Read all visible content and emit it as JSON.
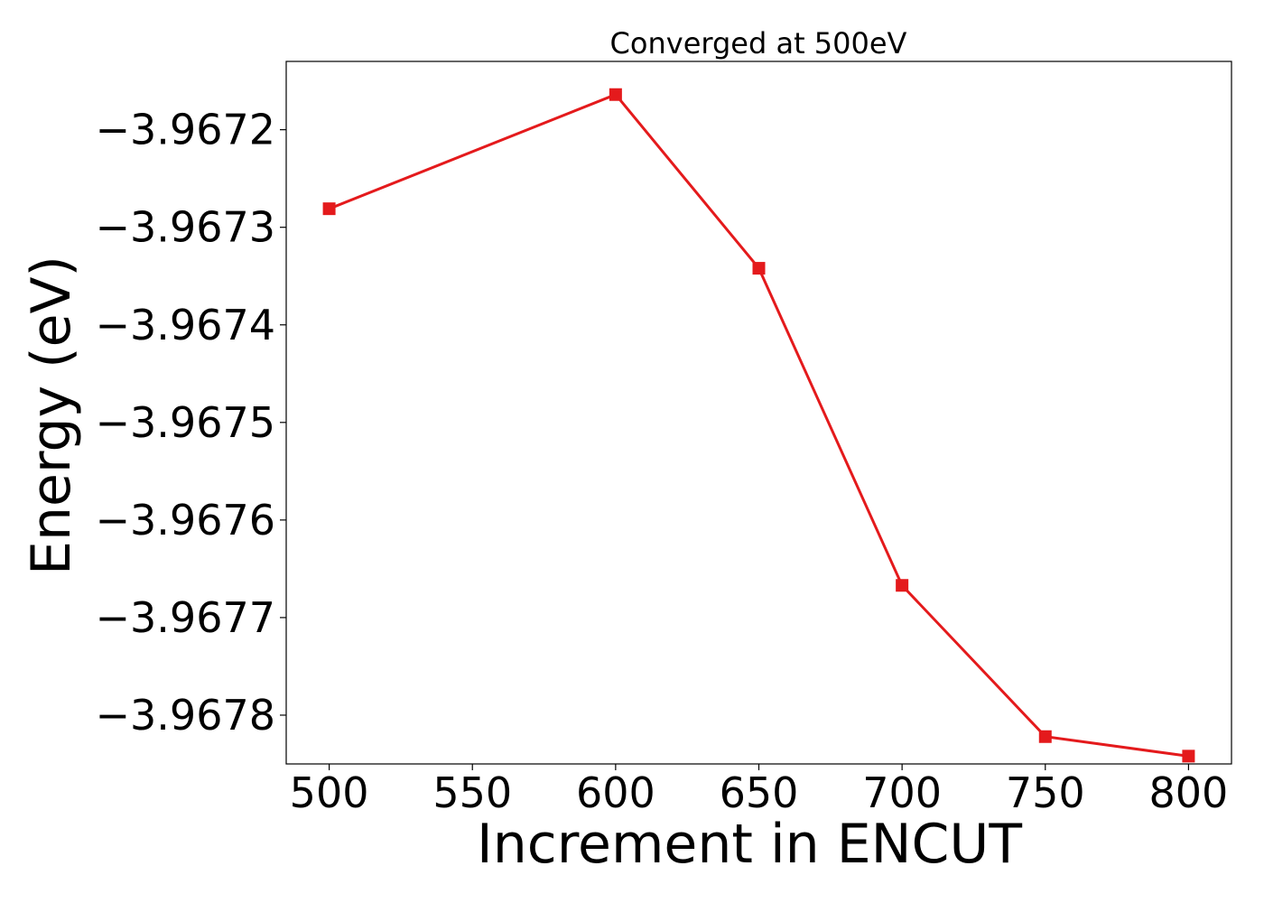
{
  "chart_data": {
    "type": "line",
    "title": "Converged at 500eV",
    "xlabel": "Increment in ENCUT",
    "ylabel": "Energy (eV)",
    "xlim": [
      485,
      815
    ],
    "ylim": [
      -3.96785,
      -3.96713
    ],
    "x_ticks": [
      500,
      550,
      600,
      650,
      700,
      750,
      800
    ],
    "x_tick_labels": [
      "500",
      "550",
      "600",
      "650",
      "700",
      "750",
      "800"
    ],
    "y_ticks": [
      -3.9672,
      -3.9673,
      -3.9674,
      -3.9675,
      -3.9676,
      -3.9677,
      -3.9678
    ],
    "y_tick_labels": [
      "−3.9672",
      "−3.9673",
      "−3.9674",
      "−3.9675",
      "−3.9676",
      "−3.9677",
      "−3.9678"
    ],
    "grid": false,
    "legend": "none",
    "series": [
      {
        "color": "#e41a1c",
        "marker": "square",
        "x": [
          500,
          600,
          650,
          700,
          750,
          800
        ],
        "y": [
          -3.967281,
          -3.967164,
          -3.967342,
          -3.967667,
          -3.967822,
          -3.967842
        ]
      }
    ]
  }
}
